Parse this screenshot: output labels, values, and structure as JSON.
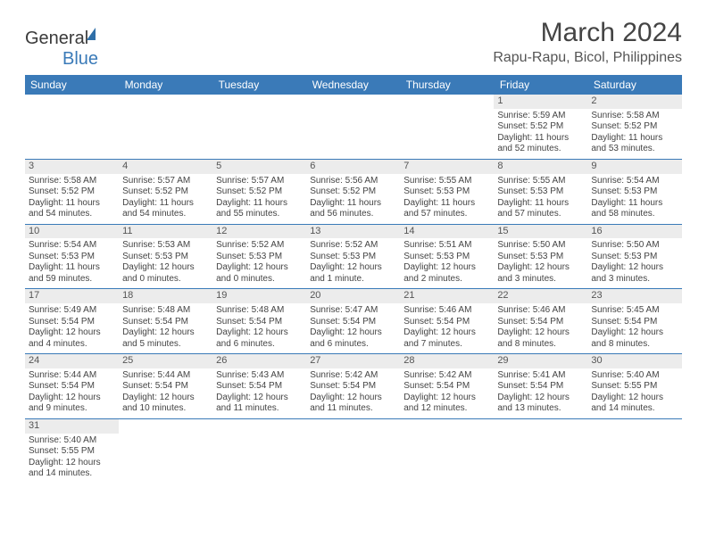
{
  "brand": {
    "name_a": "General",
    "name_b": "Blue"
  },
  "header": {
    "title": "March 2024",
    "location": "Rapu-Rapu, Bicol, Philippines"
  },
  "colors": {
    "header_bg": "#3a7ab8",
    "header_text": "#ffffff",
    "daynum_bg": "#ececec",
    "cell_border": "#3a7ab8",
    "text": "#444444"
  },
  "days": [
    "Sunday",
    "Monday",
    "Tuesday",
    "Wednesday",
    "Thursday",
    "Friday",
    "Saturday"
  ],
  "weeks": [
    [
      null,
      null,
      null,
      null,
      null,
      {
        "n": "1",
        "sr": "Sunrise: 5:59 AM",
        "ss": "Sunset: 5:52 PM",
        "dl": "Daylight: 11 hours and 52 minutes."
      },
      {
        "n": "2",
        "sr": "Sunrise: 5:58 AM",
        "ss": "Sunset: 5:52 PM",
        "dl": "Daylight: 11 hours and 53 minutes."
      }
    ],
    [
      {
        "n": "3",
        "sr": "Sunrise: 5:58 AM",
        "ss": "Sunset: 5:52 PM",
        "dl": "Daylight: 11 hours and 54 minutes."
      },
      {
        "n": "4",
        "sr": "Sunrise: 5:57 AM",
        "ss": "Sunset: 5:52 PM",
        "dl": "Daylight: 11 hours and 54 minutes."
      },
      {
        "n": "5",
        "sr": "Sunrise: 5:57 AM",
        "ss": "Sunset: 5:52 PM",
        "dl": "Daylight: 11 hours and 55 minutes."
      },
      {
        "n": "6",
        "sr": "Sunrise: 5:56 AM",
        "ss": "Sunset: 5:52 PM",
        "dl": "Daylight: 11 hours and 56 minutes."
      },
      {
        "n": "7",
        "sr": "Sunrise: 5:55 AM",
        "ss": "Sunset: 5:53 PM",
        "dl": "Daylight: 11 hours and 57 minutes."
      },
      {
        "n": "8",
        "sr": "Sunrise: 5:55 AM",
        "ss": "Sunset: 5:53 PM",
        "dl": "Daylight: 11 hours and 57 minutes."
      },
      {
        "n": "9",
        "sr": "Sunrise: 5:54 AM",
        "ss": "Sunset: 5:53 PM",
        "dl": "Daylight: 11 hours and 58 minutes."
      }
    ],
    [
      {
        "n": "10",
        "sr": "Sunrise: 5:54 AM",
        "ss": "Sunset: 5:53 PM",
        "dl": "Daylight: 11 hours and 59 minutes."
      },
      {
        "n": "11",
        "sr": "Sunrise: 5:53 AM",
        "ss": "Sunset: 5:53 PM",
        "dl": "Daylight: 12 hours and 0 minutes."
      },
      {
        "n": "12",
        "sr": "Sunrise: 5:52 AM",
        "ss": "Sunset: 5:53 PM",
        "dl": "Daylight: 12 hours and 0 minutes."
      },
      {
        "n": "13",
        "sr": "Sunrise: 5:52 AM",
        "ss": "Sunset: 5:53 PM",
        "dl": "Daylight: 12 hours and 1 minute."
      },
      {
        "n": "14",
        "sr": "Sunrise: 5:51 AM",
        "ss": "Sunset: 5:53 PM",
        "dl": "Daylight: 12 hours and 2 minutes."
      },
      {
        "n": "15",
        "sr": "Sunrise: 5:50 AM",
        "ss": "Sunset: 5:53 PM",
        "dl": "Daylight: 12 hours and 3 minutes."
      },
      {
        "n": "16",
        "sr": "Sunrise: 5:50 AM",
        "ss": "Sunset: 5:53 PM",
        "dl": "Daylight: 12 hours and 3 minutes."
      }
    ],
    [
      {
        "n": "17",
        "sr": "Sunrise: 5:49 AM",
        "ss": "Sunset: 5:54 PM",
        "dl": "Daylight: 12 hours and 4 minutes."
      },
      {
        "n": "18",
        "sr": "Sunrise: 5:48 AM",
        "ss": "Sunset: 5:54 PM",
        "dl": "Daylight: 12 hours and 5 minutes."
      },
      {
        "n": "19",
        "sr": "Sunrise: 5:48 AM",
        "ss": "Sunset: 5:54 PM",
        "dl": "Daylight: 12 hours and 6 minutes."
      },
      {
        "n": "20",
        "sr": "Sunrise: 5:47 AM",
        "ss": "Sunset: 5:54 PM",
        "dl": "Daylight: 12 hours and 6 minutes."
      },
      {
        "n": "21",
        "sr": "Sunrise: 5:46 AM",
        "ss": "Sunset: 5:54 PM",
        "dl": "Daylight: 12 hours and 7 minutes."
      },
      {
        "n": "22",
        "sr": "Sunrise: 5:46 AM",
        "ss": "Sunset: 5:54 PM",
        "dl": "Daylight: 12 hours and 8 minutes."
      },
      {
        "n": "23",
        "sr": "Sunrise: 5:45 AM",
        "ss": "Sunset: 5:54 PM",
        "dl": "Daylight: 12 hours and 8 minutes."
      }
    ],
    [
      {
        "n": "24",
        "sr": "Sunrise: 5:44 AM",
        "ss": "Sunset: 5:54 PM",
        "dl": "Daylight: 12 hours and 9 minutes."
      },
      {
        "n": "25",
        "sr": "Sunrise: 5:44 AM",
        "ss": "Sunset: 5:54 PM",
        "dl": "Daylight: 12 hours and 10 minutes."
      },
      {
        "n": "26",
        "sr": "Sunrise: 5:43 AM",
        "ss": "Sunset: 5:54 PM",
        "dl": "Daylight: 12 hours and 11 minutes."
      },
      {
        "n": "27",
        "sr": "Sunrise: 5:42 AM",
        "ss": "Sunset: 5:54 PM",
        "dl": "Daylight: 12 hours and 11 minutes."
      },
      {
        "n": "28",
        "sr": "Sunrise: 5:42 AM",
        "ss": "Sunset: 5:54 PM",
        "dl": "Daylight: 12 hours and 12 minutes."
      },
      {
        "n": "29",
        "sr": "Sunrise: 5:41 AM",
        "ss": "Sunset: 5:54 PM",
        "dl": "Daylight: 12 hours and 13 minutes."
      },
      {
        "n": "30",
        "sr": "Sunrise: 5:40 AM",
        "ss": "Sunset: 5:55 PM",
        "dl": "Daylight: 12 hours and 14 minutes."
      }
    ],
    [
      {
        "n": "31",
        "sr": "Sunrise: 5:40 AM",
        "ss": "Sunset: 5:55 PM",
        "dl": "Daylight: 12 hours and 14 minutes."
      },
      null,
      null,
      null,
      null,
      null,
      null
    ]
  ]
}
